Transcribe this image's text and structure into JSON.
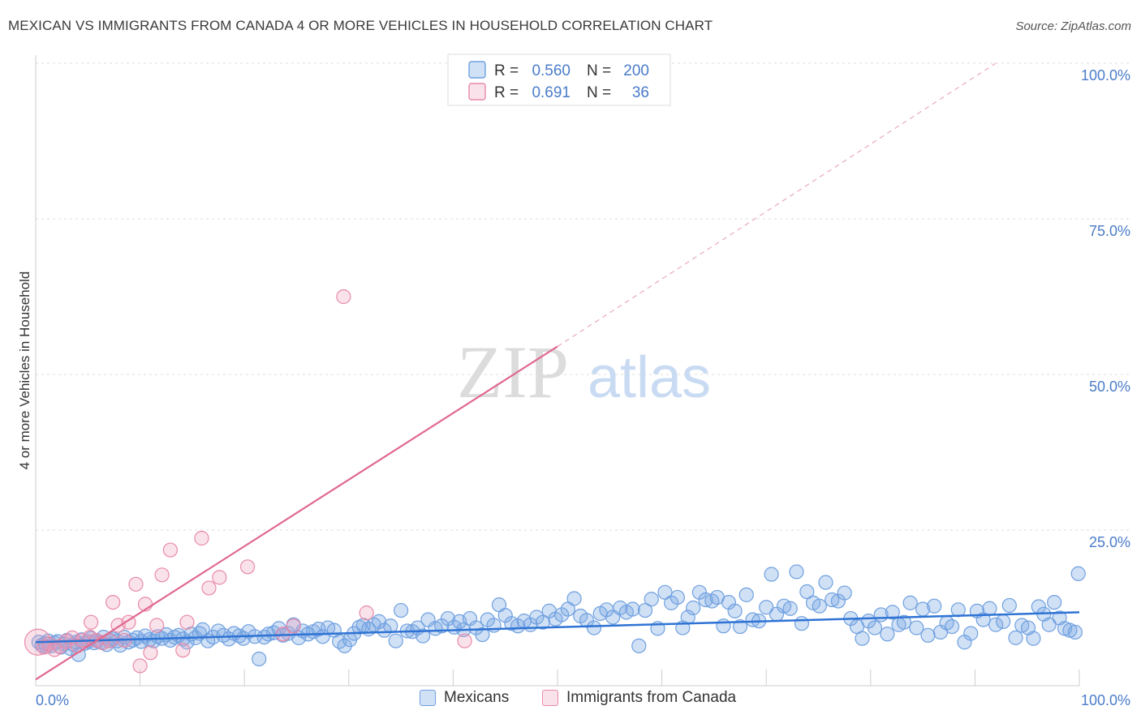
{
  "title": "MEXICAN VS IMMIGRANTS FROM CANADA 4 OR MORE VEHICLES IN HOUSEHOLD CORRELATION CHART",
  "source": "Source: ZipAtlas.com",
  "watermark": {
    "zip": "ZIP",
    "atlas": "atlas"
  },
  "colors": {
    "blue": "#6fa0e0",
    "blue_fill": "rgba(120,165,225,0.35)",
    "blue_line": "#2f73d4",
    "pink": "#e889a8",
    "pink_fill": "rgba(240,160,190,0.30)",
    "pink_line": "#e06890",
    "tick_label": "#4a7cc9"
  },
  "legend_top": {
    "rows": [
      {
        "r_label": "R =",
        "r_value": "0.560",
        "n_label": "N =",
        "n_value": "200"
      },
      {
        "r_label": "R =",
        "r_value": "0.691",
        "n_label": "N =",
        "n_value": "36"
      }
    ]
  },
  "legend_bottom": [
    {
      "label": "Mexicans"
    },
    {
      "label": "Immigrants from Canada"
    }
  ],
  "chart_data": {
    "type": "scatter",
    "title": "MEXICAN VS IMMIGRANTS FROM CANADA 4 OR MORE VEHICLES IN HOUSEHOLD CORRELATION CHART",
    "xlabel": "",
    "ylabel": "4 or more Vehicles in Household",
    "xlim": [
      0,
      100
    ],
    "ylim": [
      0,
      100
    ],
    "x_tick_labels": [
      {
        "value": 0,
        "label": "0.0%"
      },
      {
        "value": 100,
        "label": "100.0%"
      }
    ],
    "y_tick_labels": [
      {
        "value": 25,
        "label": "25.0%"
      },
      {
        "value": 50,
        "label": "50.0%"
      },
      {
        "value": 75,
        "label": "75.0%"
      },
      {
        "value": 100,
        "label": "100.0%"
      }
    ],
    "grid": true,
    "series": [
      {
        "name": "Mexicans",
        "R": 0.56,
        "N": 200,
        "trend": {
          "x": [
            0,
            100
          ],
          "y": [
            7.0,
            11.8
          ]
        },
        "points": [
          [
            0.3,
            7.0
          ],
          [
            0.6,
            6.5
          ],
          [
            0.9,
            6.8
          ],
          [
            1.2,
            7.2
          ],
          [
            1.5,
            6.4
          ],
          [
            1.8,
            6.9
          ],
          [
            2.1,
            7.1
          ],
          [
            2.4,
            6.2
          ],
          [
            2.7,
            6.7
          ],
          [
            3.0,
            7.3
          ],
          [
            3.3,
            6.0
          ],
          [
            3.6,
            6.6
          ],
          [
            3.9,
            7.0
          ],
          [
            4.1,
            5.0
          ],
          [
            4.4,
            7.4
          ],
          [
            4.7,
            6.8
          ],
          [
            5.0,
            7.1
          ],
          [
            5.3,
            7.6
          ],
          [
            5.6,
            6.9
          ],
          [
            5.9,
            7.2
          ],
          [
            6.2,
            7.0
          ],
          [
            6.5,
            7.8
          ],
          [
            6.8,
            6.6
          ],
          [
            7.1,
            7.3
          ],
          [
            7.4,
            7.5
          ],
          [
            7.8,
            7.2
          ],
          [
            8.1,
            6.5
          ],
          [
            8.5,
            7.8
          ],
          [
            8.9,
            7.0
          ],
          [
            9.3,
            7.3
          ],
          [
            9.7,
            7.7
          ],
          [
            10.1,
            7.1
          ],
          [
            10.5,
            8.0
          ],
          [
            10.9,
            7.4
          ],
          [
            11.3,
            7.2
          ],
          [
            11.7,
            7.9
          ],
          [
            12.1,
            7.6
          ],
          [
            12.5,
            8.2
          ],
          [
            12.9,
            7.3
          ],
          [
            13.3,
            7.8
          ],
          [
            13.7,
            8.1
          ],
          [
            14.1,
            7.5
          ],
          [
            14.5,
            7.0
          ],
          [
            14.9,
            8.3
          ],
          [
            15.3,
            7.7
          ],
          [
            15.7,
            8.4
          ],
          [
            16.0,
            9.0
          ],
          [
            16.5,
            7.2
          ],
          [
            17.0,
            7.8
          ],
          [
            17.5,
            8.8
          ],
          [
            18.0,
            8.1
          ],
          [
            18.5,
            7.5
          ],
          [
            19.0,
            8.4
          ],
          [
            19.5,
            8.0
          ],
          [
            19.9,
            7.6
          ],
          [
            20.4,
            8.7
          ],
          [
            21.0,
            7.9
          ],
          [
            21.4,
            4.3
          ],
          [
            21.9,
            7.8
          ],
          [
            22.3,
            8.3
          ],
          [
            22.8,
            8.5
          ],
          [
            23.3,
            9.2
          ],
          [
            23.7,
            8.1
          ],
          [
            24.2,
            8.4
          ],
          [
            24.7,
            9.8
          ],
          [
            25.2,
            7.7
          ],
          [
            25.6,
            8.8
          ],
          [
            26.1,
            8.3
          ],
          [
            26.6,
            8.7
          ],
          [
            27.1,
            9.1
          ],
          [
            27.5,
            7.9
          ],
          [
            28.0,
            9.3
          ],
          [
            28.6,
            8.9
          ],
          [
            29.1,
            7.1
          ],
          [
            29.6,
            6.4
          ],
          [
            30.1,
            7.4
          ],
          [
            30.5,
            8.4
          ],
          [
            31.0,
            9.4
          ],
          [
            31.4,
            9.7
          ],
          [
            31.9,
            9.1
          ],
          [
            32.4,
            9.8
          ],
          [
            32.9,
            10.3
          ],
          [
            33.4,
            8.9
          ],
          [
            34.0,
            9.6
          ],
          [
            34.5,
            7.2
          ],
          [
            35.0,
            12.1
          ],
          [
            35.6,
            8.8
          ],
          [
            36.1,
            8.7
          ],
          [
            36.6,
            9.3
          ],
          [
            37.1,
            8.0
          ],
          [
            37.6,
            10.6
          ],
          [
            38.3,
            9.2
          ],
          [
            38.9,
            9.6
          ],
          [
            39.5,
            10.8
          ],
          [
            40.1,
            9.4
          ],
          [
            40.6,
            10.3
          ],
          [
            41.0,
            9.0
          ],
          [
            41.6,
            10.8
          ],
          [
            42.2,
            9.3
          ],
          [
            42.8,
            8.2
          ],
          [
            43.3,
            10.6
          ],
          [
            43.9,
            9.7
          ],
          [
            44.4,
            13.0
          ],
          [
            45.0,
            11.3
          ],
          [
            45.6,
            10.0
          ],
          [
            46.2,
            9.6
          ],
          [
            46.8,
            10.4
          ],
          [
            47.4,
            9.8
          ],
          [
            48.0,
            11.0
          ],
          [
            48.6,
            10.2
          ],
          [
            49.2,
            12.0
          ],
          [
            49.8,
            10.7
          ],
          [
            50.4,
            11.4
          ],
          [
            51.0,
            12.3
          ],
          [
            51.6,
            14.0
          ],
          [
            52.2,
            11.2
          ],
          [
            52.8,
            10.5
          ],
          [
            53.5,
            9.3
          ],
          [
            54.1,
            11.6
          ],
          [
            54.7,
            12.2
          ],
          [
            55.3,
            11.0
          ],
          [
            56.0,
            12.5
          ],
          [
            56.6,
            11.8
          ],
          [
            57.2,
            12.3
          ],
          [
            57.8,
            6.4
          ],
          [
            58.4,
            12.1
          ],
          [
            59.0,
            13.9
          ],
          [
            59.6,
            9.2
          ],
          [
            60.3,
            15.0
          ],
          [
            60.9,
            13.3
          ],
          [
            61.5,
            14.2
          ],
          [
            62.0,
            9.3
          ],
          [
            62.5,
            11.0
          ],
          [
            63.0,
            12.5
          ],
          [
            63.6,
            15.0
          ],
          [
            64.2,
            13.8
          ],
          [
            64.8,
            13.6
          ],
          [
            65.3,
            14.2
          ],
          [
            65.9,
            9.6
          ],
          [
            66.4,
            13.4
          ],
          [
            67.0,
            12.0
          ],
          [
            67.5,
            9.5
          ],
          [
            68.1,
            14.6
          ],
          [
            68.7,
            10.6
          ],
          [
            69.3,
            10.4
          ],
          [
            70.0,
            12.6
          ],
          [
            70.5,
            17.9
          ],
          [
            71.0,
            11.5
          ],
          [
            71.7,
            12.8
          ],
          [
            72.3,
            12.4
          ],
          [
            72.9,
            18.3
          ],
          [
            73.4,
            10.0
          ],
          [
            73.9,
            15.1
          ],
          [
            74.5,
            13.3
          ],
          [
            75.1,
            12.8
          ],
          [
            75.7,
            16.6
          ],
          [
            76.3,
            13.8
          ],
          [
            76.9,
            13.6
          ],
          [
            77.5,
            14.9
          ],
          [
            78.1,
            10.8
          ],
          [
            78.7,
            9.5
          ],
          [
            79.2,
            7.6
          ],
          [
            79.8,
            10.4
          ],
          [
            80.4,
            9.3
          ],
          [
            81.0,
            11.4
          ],
          [
            81.6,
            8.3
          ],
          [
            82.1,
            11.8
          ],
          [
            82.7,
            9.8
          ],
          [
            83.2,
            10.2
          ],
          [
            83.8,
            13.3
          ],
          [
            84.4,
            9.3
          ],
          [
            85.0,
            12.3
          ],
          [
            85.5,
            8.1
          ],
          [
            86.1,
            12.8
          ],
          [
            86.7,
            8.6
          ],
          [
            87.3,
            10.1
          ],
          [
            87.8,
            9.5
          ],
          [
            88.4,
            12.2
          ],
          [
            89.0,
            7.0
          ],
          [
            89.6,
            8.4
          ],
          [
            90.2,
            12.0
          ],
          [
            90.8,
            10.6
          ],
          [
            91.4,
            12.4
          ],
          [
            92.0,
            9.8
          ],
          [
            92.7,
            10.3
          ],
          [
            93.3,
            12.9
          ],
          [
            93.9,
            7.7
          ],
          [
            94.5,
            9.7
          ],
          [
            95.1,
            9.3
          ],
          [
            95.6,
            7.6
          ]
        ],
        "points_extra": [
          [
            96.1,
            12.7
          ],
          [
            96.6,
            11.5
          ],
          [
            97.1,
            9.8
          ],
          [
            97.6,
            13.4
          ],
          [
            98.1,
            10.9
          ],
          [
            98.6,
            9.2
          ],
          [
            99.1,
            8.9
          ],
          [
            99.6,
            8.6
          ],
          [
            99.9,
            18.0
          ],
          [
            1.0,
            6.3
          ]
        ]
      },
      {
        "name": "Immigrants from Canada",
        "R": 0.691,
        "N": 36,
        "trend": {
          "x": [
            0,
            50
          ],
          "y": [
            1.0,
            54.5
          ]
        },
        "trend_extension": {
          "x": [
            50,
            92
          ],
          "y": [
            54.5,
            100
          ]
        },
        "points": [
          [
            0.2,
            7.0
          ],
          [
            0.8,
            6.2
          ],
          [
            1.3,
            6.7
          ],
          [
            1.8,
            5.8
          ],
          [
            2.3,
            6.3
          ],
          [
            2.9,
            7.1
          ],
          [
            3.5,
            7.7
          ],
          [
            4.0,
            6.4
          ],
          [
            4.5,
            7.3
          ],
          [
            5.2,
            7.8
          ],
          [
            5.3,
            10.2
          ],
          [
            5.8,
            7.3
          ],
          [
            6.4,
            6.9
          ],
          [
            7.1,
            7.2
          ],
          [
            7.4,
            13.4
          ],
          [
            7.9,
            9.7
          ],
          [
            8.5,
            7.3
          ],
          [
            8.9,
            10.2
          ],
          [
            9.6,
            16.3
          ],
          [
            10.0,
            3.2
          ],
          [
            10.5,
            13.1
          ],
          [
            11.0,
            5.3
          ],
          [
            11.6,
            9.7
          ],
          [
            12.1,
            17.8
          ],
          [
            12.9,
            21.8
          ],
          [
            14.1,
            5.7
          ],
          [
            14.5,
            10.2
          ],
          [
            15.9,
            23.7
          ],
          [
            16.6,
            15.7
          ],
          [
            17.6,
            17.4
          ],
          [
            20.3,
            19.1
          ],
          [
            23.7,
            8.3
          ],
          [
            24.7,
            9.6
          ],
          [
            29.5,
            62.5
          ],
          [
            31.7,
            11.7
          ],
          [
            41.1,
            7.2
          ]
        ]
      }
    ]
  }
}
